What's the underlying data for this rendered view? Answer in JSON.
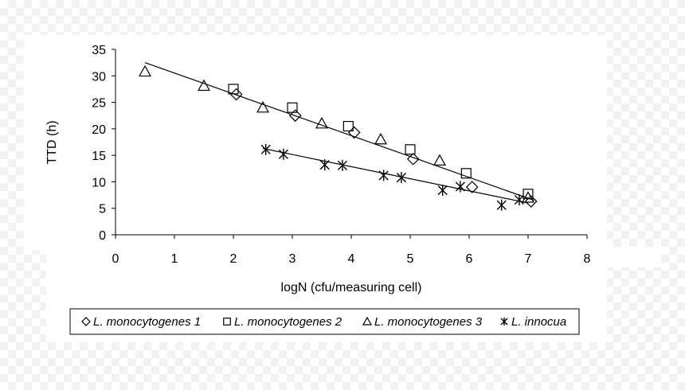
{
  "chart_data": {
    "type": "scatter",
    "xlabel": "logN (cfu/measuring cell)",
    "ylabel": "TTD (h)",
    "xlim": [
      0,
      8
    ],
    "ylim": [
      0,
      35
    ],
    "xticks": [
      "0",
      "1",
      "2",
      "3",
      "4",
      "5",
      "6",
      "7",
      "8"
    ],
    "yticks": [
      "0",
      "5",
      "10",
      "15",
      "20",
      "25",
      "30",
      "35"
    ],
    "grid": false,
    "legend_placement": "bottom",
    "series": [
      {
        "name": "L. monocytogenes 1",
        "marker": "diamond",
        "points": [
          [
            2.05,
            26.5
          ],
          [
            3.05,
            22.5
          ],
          [
            4.05,
            19.3
          ],
          [
            5.05,
            14.3
          ],
          [
            6.05,
            9.0
          ],
          [
            7.05,
            6.3
          ]
        ]
      },
      {
        "name": "L. monocytogenes 2",
        "marker": "square",
        "points": [
          [
            2.0,
            27.5
          ],
          [
            3.0,
            24.0
          ],
          [
            3.95,
            20.5
          ],
          [
            5.0,
            16.1
          ],
          [
            5.95,
            11.6
          ],
          [
            7.0,
            7.7
          ]
        ]
      },
      {
        "name": "L. monocytogenes 3",
        "marker": "triangle",
        "points": [
          [
            0.5,
            30.8
          ],
          [
            1.5,
            28.1
          ],
          [
            2.5,
            24.0
          ],
          [
            3.5,
            21.0
          ],
          [
            4.5,
            18.0
          ],
          [
            5.5,
            14.0
          ],
          [
            7.0,
            7.0
          ]
        ]
      },
      {
        "name": "L. innocua",
        "marker": "star",
        "points": [
          [
            2.55,
            16.1
          ],
          [
            2.85,
            15.2
          ],
          [
            3.55,
            13.2
          ],
          [
            3.85,
            13.1
          ],
          [
            4.55,
            11.2
          ],
          [
            4.85,
            10.8
          ],
          [
            5.55,
            8.4
          ],
          [
            5.85,
            9.1
          ],
          [
            6.55,
            5.6
          ],
          [
            6.85,
            6.6
          ]
        ]
      }
    ],
    "trendlines": [
      {
        "name": "L. monocytogenes",
        "x": [
          0.5,
          7.1
        ],
        "y": [
          32.5,
          6.5
        ]
      },
      {
        "name": "L. innocua",
        "x": [
          2.5,
          7.0
        ],
        "y": [
          16.3,
          6.0
        ]
      }
    ]
  }
}
